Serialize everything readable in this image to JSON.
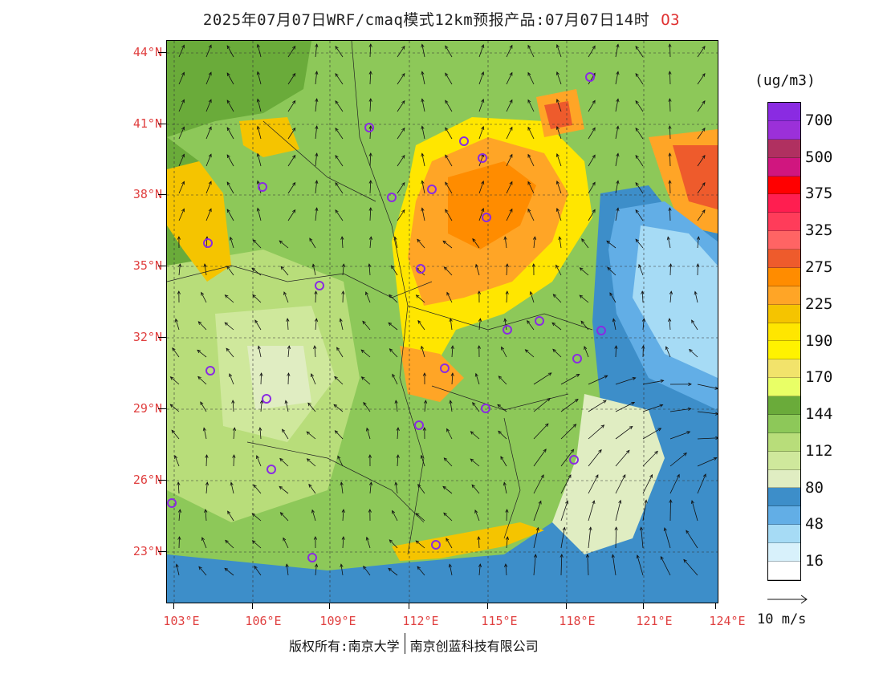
{
  "title": {
    "text": "2025年07月07日WRF/cmaq模式12km预报产品:07月07日14时",
    "species": "O3"
  },
  "map": {
    "lat_labels": [
      "44°N",
      "41°N",
      "38°N",
      "35°N",
      "32°N",
      "29°N",
      "26°N",
      "23°N"
    ],
    "lon_labels": [
      "103°E",
      "106°E",
      "109°E",
      "112°E",
      "115°E",
      "118°E",
      "121°E",
      "124°E"
    ],
    "colors": {
      "ocean": "#3d8ec9",
      "land": "#8dc859"
    }
  },
  "legend": {
    "unit": "(ug/m3)",
    "levels": [
      {
        "label": "700",
        "color": "#8a2be2"
      },
      {
        "label": "",
        "color": "#9b30d9"
      },
      {
        "label": "500",
        "color": "#b03060"
      },
      {
        "label": "",
        "color": "#d0167f"
      },
      {
        "label": "375",
        "color": "#ff0000"
      },
      {
        "label": "",
        "color": "#ff1e50"
      },
      {
        "label": "325",
        "color": "#ff3c5a"
      },
      {
        "label": "",
        "color": "#ff6464"
      },
      {
        "label": "275",
        "color": "#ee5b2c"
      },
      {
        "label": "",
        "color": "#ff8c00"
      },
      {
        "label": "225",
        "color": "#ffa526"
      },
      {
        "label": "",
        "color": "#f5c400"
      },
      {
        "label": "190",
        "color": "#ffe600"
      },
      {
        "label": "",
        "color": "#fff200"
      },
      {
        "label": "170",
        "color": "#f2e36b"
      },
      {
        "label": "",
        "color": "#e9ff66"
      },
      {
        "label": "144",
        "color": "#6aab3a"
      },
      {
        "label": "",
        "color": "#8dc859"
      },
      {
        "label": "112",
        "color": "#b8dd7a"
      },
      {
        "label": "",
        "color": "#cfe89c"
      },
      {
        "label": "80",
        "color": "#e0edc2"
      },
      {
        "label": "",
        "color": "#3d8ec9"
      },
      {
        "label": "48",
        "color": "#62aee6"
      },
      {
        "label": "",
        "color": "#a6dbf5"
      },
      {
        "label": "16",
        "color": "#d8f1fb"
      },
      {
        "label": "",
        "color": "#ffffff"
      }
    ],
    "wind_ref": "10 m/s"
  },
  "footer": {
    "left": "版权所有:南京大学",
    "right": "南京创蓝科技有限公司"
  }
}
